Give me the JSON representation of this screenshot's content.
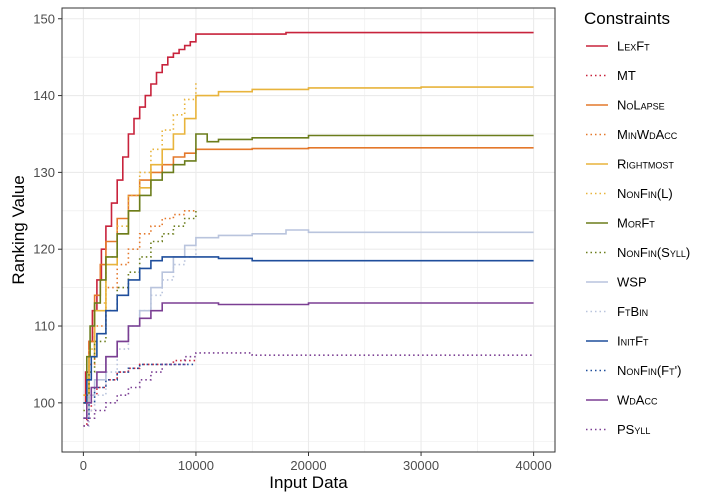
{
  "chart_data": {
    "type": "line",
    "xlabel": "Input Data",
    "ylabel": "Ranking Value",
    "xlim": [
      -1900,
      41900
    ],
    "ylim": [
      93.6,
      151.4
    ],
    "x_ticks": [
      0,
      10000,
      20000,
      30000,
      40000
    ],
    "x_tick_labels": [
      "0",
      "10000",
      "20000",
      "30000",
      "40000"
    ],
    "y_ticks": [
      100,
      110,
      120,
      130,
      140,
      150
    ],
    "y_tick_labels": [
      "100",
      "110",
      "120",
      "130",
      "140",
      "150"
    ],
    "grid": true,
    "legend": {
      "title": "Constraints",
      "position": "right"
    },
    "series": [
      {
        "name": "LexFt",
        "color": "#c8233c",
        "dash": "solid",
        "points": [
          [
            0,
            100
          ],
          [
            200,
            104
          ],
          [
            500,
            108
          ],
          [
            800,
            112
          ],
          [
            1200,
            116
          ],
          [
            1600,
            120
          ],
          [
            2000,
            123
          ],
          [
            2500,
            126
          ],
          [
            3000,
            129
          ],
          [
            3500,
            132
          ],
          [
            4000,
            135
          ],
          [
            4500,
            137
          ],
          [
            5000,
            138.5
          ],
          [
            5500,
            140
          ],
          [
            6000,
            141.5
          ],
          [
            6500,
            143
          ],
          [
            7000,
            144
          ],
          [
            7500,
            145
          ],
          [
            8000,
            145.5
          ],
          [
            8500,
            146
          ],
          [
            9000,
            146.5
          ],
          [
            9500,
            147
          ],
          [
            10000,
            148
          ],
          [
            12000,
            148
          ],
          [
            15000,
            148
          ],
          [
            18000,
            148.2
          ],
          [
            20000,
            148.2
          ],
          [
            30000,
            148.2
          ],
          [
            40000,
            148.2
          ]
        ]
      },
      {
        "name": "MT",
        "color": "#c8233c",
        "dash": "dotted",
        "points": [
          [
            0,
            97
          ],
          [
            300,
            99
          ],
          [
            700,
            101
          ],
          [
            1200,
            102
          ],
          [
            2000,
            103
          ],
          [
            3000,
            104
          ],
          [
            4000,
            104.5
          ],
          [
            5000,
            105
          ],
          [
            7000,
            105
          ],
          [
            8000,
            105.5
          ],
          [
            9000,
            105.5
          ],
          [
            10000,
            105.5
          ]
        ]
      },
      {
        "name": "NoLapse",
        "color": "#e4782b",
        "dash": "solid",
        "points": [
          [
            0,
            101
          ],
          [
            500,
            108
          ],
          [
            1000,
            114
          ],
          [
            1500,
            118
          ],
          [
            2000,
            121
          ],
          [
            3000,
            124
          ],
          [
            4000,
            127
          ],
          [
            5000,
            129
          ],
          [
            6000,
            130
          ],
          [
            7000,
            131
          ],
          [
            8000,
            132
          ],
          [
            9000,
            132.5
          ],
          [
            10000,
            133
          ],
          [
            12000,
            133
          ],
          [
            15000,
            133.1
          ],
          [
            20000,
            133.2
          ],
          [
            30000,
            133.2
          ],
          [
            40000,
            133.2
          ]
        ]
      },
      {
        "name": "MinWdAcc",
        "color": "#e4782b",
        "dash": "dotted",
        "points": [
          [
            0,
            100
          ],
          [
            500,
            105
          ],
          [
            1000,
            110
          ],
          [
            2000,
            115
          ],
          [
            3000,
            118
          ],
          [
            4000,
            120
          ],
          [
            5000,
            122
          ],
          [
            6000,
            123
          ],
          [
            7000,
            124
          ],
          [
            8000,
            124.5
          ],
          [
            9000,
            125
          ],
          [
            10000,
            125
          ]
        ]
      },
      {
        "name": "Rightmost",
        "color": "#e8b43c",
        "dash": "solid",
        "points": [
          [
            0,
            100
          ],
          [
            500,
            106
          ],
          [
            1000,
            112
          ],
          [
            2000,
            118
          ],
          [
            3000,
            122
          ],
          [
            4000,
            125
          ],
          [
            5000,
            128
          ],
          [
            6000,
            131
          ],
          [
            7000,
            133
          ],
          [
            8000,
            135
          ],
          [
            9000,
            137
          ],
          [
            10000,
            140
          ],
          [
            12000,
            140.5
          ],
          [
            15000,
            140.8
          ],
          [
            20000,
            141
          ],
          [
            30000,
            141.1
          ],
          [
            40000,
            141.1
          ]
        ]
      },
      {
        "name": "NonFin(L)",
        "color": "#e8b43c",
        "dash": "dotted",
        "points": [
          [
            0,
            101
          ],
          [
            500,
            107
          ],
          [
            1000,
            113
          ],
          [
            2000,
            119
          ],
          [
            3000,
            123
          ],
          [
            4000,
            127
          ],
          [
            5000,
            130
          ],
          [
            6000,
            133
          ],
          [
            7000,
            135.5
          ],
          [
            8000,
            137.5
          ],
          [
            9000,
            139.5
          ],
          [
            10000,
            142
          ]
        ]
      },
      {
        "name": "MorFt",
        "color": "#6b7d1c",
        "dash": "solid",
        "points": [
          [
            0,
            100
          ],
          [
            300,
            106
          ],
          [
            600,
            110
          ],
          [
            1000,
            113
          ],
          [
            1500,
            116
          ],
          [
            2000,
            119
          ],
          [
            3000,
            122
          ],
          [
            4000,
            125
          ],
          [
            5000,
            127
          ],
          [
            6000,
            129
          ],
          [
            7000,
            130
          ],
          [
            8000,
            131
          ],
          [
            9000,
            131.5
          ],
          [
            10000,
            135
          ],
          [
            11000,
            134
          ],
          [
            12000,
            134.3
          ],
          [
            15000,
            134.5
          ],
          [
            20000,
            134.8
          ],
          [
            30000,
            134.8
          ],
          [
            40000,
            134.8
          ]
        ]
      },
      {
        "name": "NonFin(Syll)",
        "color": "#6b7d1c",
        "dash": "dotted",
        "points": [
          [
            0,
            99
          ],
          [
            500,
            104
          ],
          [
            1000,
            108
          ],
          [
            2000,
            112
          ],
          [
            3000,
            115
          ],
          [
            4000,
            117
          ],
          [
            5000,
            119
          ],
          [
            6000,
            121
          ],
          [
            7000,
            122
          ],
          [
            8000,
            123
          ],
          [
            9000,
            124
          ],
          [
            10000,
            125
          ]
        ]
      },
      {
        "name": "WSP",
        "color": "#b9c4dd",
        "dash": "solid",
        "points": [
          [
            0,
            98
          ],
          [
            500,
            101
          ],
          [
            1000,
            103
          ],
          [
            2000,
            106
          ],
          [
            3000,
            108
          ],
          [
            4000,
            110
          ],
          [
            5000,
            112
          ],
          [
            6000,
            115
          ],
          [
            7000,
            117
          ],
          [
            8000,
            119
          ],
          [
            9000,
            120.5
          ],
          [
            10000,
            121.5
          ],
          [
            12000,
            121.8
          ],
          [
            15000,
            122
          ],
          [
            18000,
            122.5
          ],
          [
            20000,
            122.2
          ],
          [
            30000,
            122.2
          ],
          [
            40000,
            122.2
          ]
        ]
      },
      {
        "name": "FtBin",
        "color": "#b9c4dd",
        "dash": "dotted",
        "points": [
          [
            0,
            97
          ],
          [
            500,
            99
          ],
          [
            1000,
            101
          ],
          [
            2000,
            104
          ],
          [
            3000,
            107
          ],
          [
            4000,
            110
          ],
          [
            5000,
            112
          ],
          [
            6000,
            114
          ],
          [
            7000,
            116
          ],
          [
            8000,
            118
          ],
          [
            9000,
            119
          ],
          [
            10000,
            120
          ]
        ]
      },
      {
        "name": "InitFt",
        "color": "#1f4e9c",
        "dash": "solid",
        "points": [
          [
            0,
            100
          ],
          [
            300,
            103
          ],
          [
            700,
            106
          ],
          [
            1200,
            109
          ],
          [
            2000,
            112
          ],
          [
            3000,
            114
          ],
          [
            4000,
            116
          ],
          [
            5000,
            117.5
          ],
          [
            6000,
            118.5
          ],
          [
            7000,
            119
          ],
          [
            8000,
            119
          ],
          [
            9000,
            119
          ],
          [
            10000,
            119
          ],
          [
            12000,
            118.8
          ],
          [
            15000,
            118.5
          ],
          [
            20000,
            118.5
          ],
          [
            30000,
            118.5
          ],
          [
            40000,
            118.5
          ]
        ]
      },
      {
        "name": "NonFin(Ft')",
        "color": "#1f4e9c",
        "dash": "dotted",
        "points": [
          [
            0,
            98
          ],
          [
            500,
            100
          ],
          [
            1000,
            102
          ],
          [
            2000,
            103
          ],
          [
            3000,
            104
          ],
          [
            4000,
            104.5
          ],
          [
            5000,
            105
          ],
          [
            6000,
            105
          ],
          [
            8000,
            105
          ],
          [
            10000,
            105
          ]
        ]
      },
      {
        "name": "WdAcc",
        "color": "#7b3f93",
        "dash": "solid",
        "points": [
          [
            0,
            98
          ],
          [
            300,
            100
          ],
          [
            700,
            102
          ],
          [
            1200,
            104
          ],
          [
            2000,
            106
          ],
          [
            3000,
            108
          ],
          [
            4000,
            110
          ],
          [
            5000,
            111
          ],
          [
            6000,
            112
          ],
          [
            7000,
            113
          ],
          [
            8000,
            113
          ],
          [
            9000,
            113
          ],
          [
            10000,
            113
          ],
          [
            12000,
            112.8
          ],
          [
            15000,
            112.8
          ],
          [
            20000,
            113
          ],
          [
            30000,
            113
          ],
          [
            40000,
            113
          ]
        ]
      },
      {
        "name": "PSyll",
        "color": "#7b3f93",
        "dash": "dotted",
        "points": [
          [
            0,
            97
          ],
          [
            400,
            98
          ],
          [
            1000,
            99
          ],
          [
            2000,
            100
          ],
          [
            3000,
            101
          ],
          [
            4000,
            102
          ],
          [
            5000,
            103
          ],
          [
            6000,
            104
          ],
          [
            7000,
            105
          ],
          [
            8000,
            105
          ],
          [
            9000,
            106
          ],
          [
            10000,
            106.5
          ],
          [
            12000,
            106.5
          ],
          [
            15000,
            106.2
          ],
          [
            20000,
            106.2
          ],
          [
            30000,
            106.2
          ],
          [
            40000,
            106.2
          ]
        ]
      }
    ]
  }
}
